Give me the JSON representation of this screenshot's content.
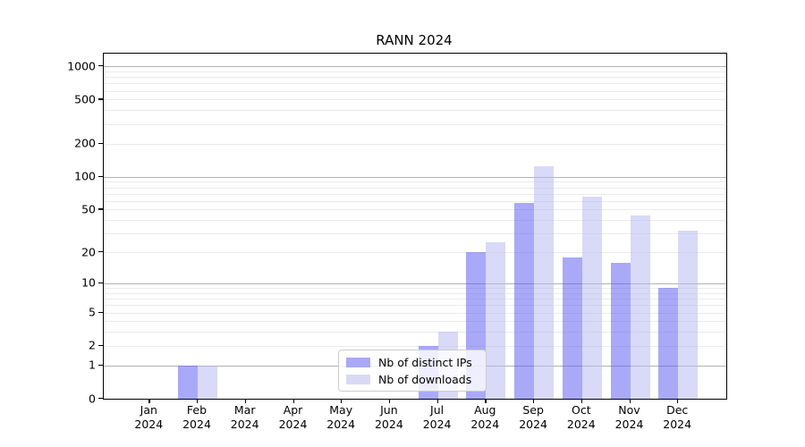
{
  "chart_data": {
    "type": "bar",
    "title": "RANN 2024",
    "categories": [
      "Jan 2024",
      "Feb 2024",
      "Mar 2024",
      "Apr 2024",
      "May 2024",
      "Jun 2024",
      "Jul 2024",
      "Aug 2024",
      "Sep 2024",
      "Oct 2024",
      "Nov 2024",
      "Dec 2024"
    ],
    "series": [
      {
        "name": "Nb of distinct IPs",
        "values": [
          0,
          1,
          0,
          0,
          0,
          0,
          2,
          20,
          58,
          18,
          16,
          9
        ],
        "bar_color": "rgba(84, 84, 241, 0.5)",
        "legend_color": "#a9a9f6"
      },
      {
        "name": "Nb of downloads",
        "values": [
          0,
          1,
          0,
          0,
          0,
          0,
          3,
          25,
          125,
          66,
          44,
          32
        ],
        "bar_color": "rgba(179, 179, 241, 0.5)",
        "legend_color": "#d9d9f6"
      }
    ],
    "xlabel": "",
    "ylabel": "",
    "y_ticks": [
      0,
      1,
      2,
      5,
      10,
      20,
      50,
      100,
      200,
      500,
      1000
    ],
    "y_major_gridlines": [
      1,
      10,
      100,
      1000
    ],
    "y_scale": "log10(1+v)",
    "ylim": [
      0,
      1300
    ],
    "grid": "horizontal",
    "legend_position": "inside-bottom-center",
    "accent_colors": {
      "major_grid": "#b2b2b2",
      "minor_grid": "#ebebeb",
      "axis": "#000000"
    }
  }
}
